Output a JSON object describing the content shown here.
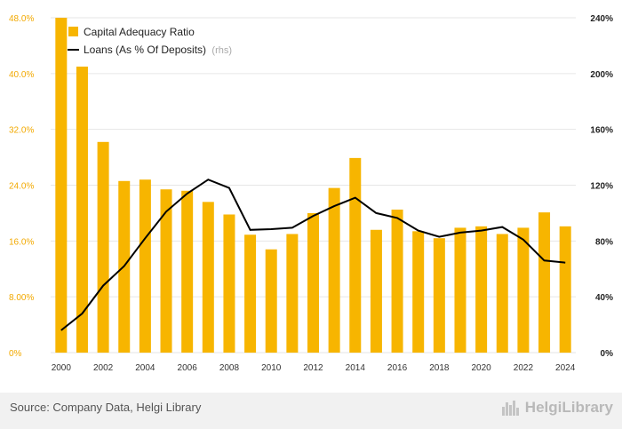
{
  "chart_data": {
    "type": "bar+line",
    "categories": [
      "2000",
      "2001",
      "2002",
      "2003",
      "2004",
      "2005",
      "2006",
      "2007",
      "2008",
      "2009",
      "2010",
      "2011",
      "2012",
      "2013",
      "2014",
      "2015",
      "2016",
      "2017",
      "2018",
      "2019",
      "2020",
      "2021",
      "2022",
      "2023",
      "2024"
    ],
    "x_tick_labels": [
      "2000",
      "2002",
      "2004",
      "2006",
      "2008",
      "2010",
      "2012",
      "2014",
      "2016",
      "2018",
      "2020",
      "2022",
      "2024"
    ],
    "series": [
      {
        "name": "Capital Adequacy Ratio",
        "type": "bar",
        "axis": "left",
        "color": "#f7b500",
        "values": [
          48.0,
          41.0,
          30.2,
          24.6,
          24.8,
          23.4,
          23.2,
          21.6,
          19.8,
          16.9,
          14.8,
          17.0,
          20.0,
          23.6,
          27.9,
          17.6,
          20.5,
          17.4,
          16.4,
          17.9,
          18.1,
          17.0,
          17.9,
          20.1,
          18.1
        ]
      },
      {
        "name": "Loans (As % Of Deposits)",
        "name_suffix": "(rhs)",
        "type": "line",
        "axis": "right",
        "color": "#000000",
        "values": [
          16,
          28,
          48,
          62,
          82,
          101,
          114,
          124,
          118,
          88,
          88.5,
          89.5,
          98,
          105,
          111,
          100,
          96.5,
          87.5,
          83,
          86,
          87.5,
          90,
          81,
          66,
          64.5
        ]
      }
    ],
    "y_left": {
      "min": 0,
      "max": 48,
      "ticks": [
        "0%",
        "8.00%",
        "16.0%",
        "24.0%",
        "32.0%",
        "40.0%",
        "48.0%"
      ]
    },
    "y_right": {
      "min": 0,
      "max": 240,
      "ticks": [
        "0%",
        "40%",
        "80%",
        "120%",
        "160%",
        "200%",
        "240%"
      ]
    },
    "grid": true,
    "legend_position": "top-left"
  },
  "footer": {
    "source": "Source: Company Data, Helgi Library",
    "logo_text": "HelgiLibrary"
  }
}
